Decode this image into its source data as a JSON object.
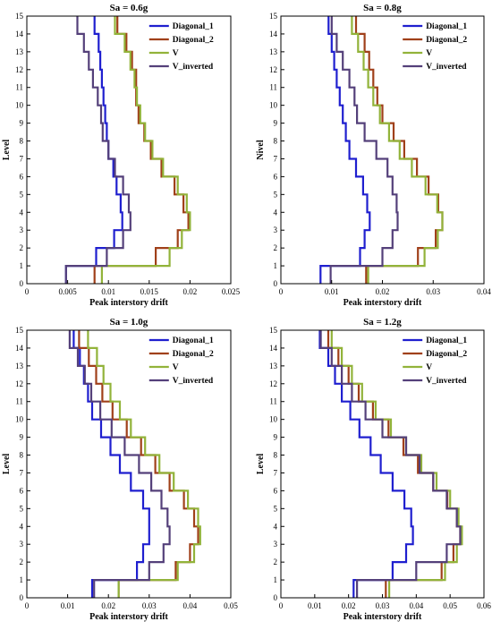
{
  "colors": {
    "Diagonal_1": "#1f1fcf",
    "Diagonal_2": "#a0401a",
    "V": "#92b33a",
    "V_inverted": "#54407a",
    "axis": "#000000"
  },
  "chart_data": [
    {
      "type": "line",
      "title": "Sa = 0.6g",
      "xlabel": "Peak interstory drift",
      "ylabel": "Level",
      "xlim": [
        0,
        0.025
      ],
      "ylim": [
        0,
        15
      ],
      "xticks": [
        0,
        0.005,
        0.01,
        0.015,
        0.02,
        0.025
      ],
      "xtick_labels": [
        "0",
        "0.005",
        "0.01",
        "0.015",
        "0.02",
        "0.025"
      ],
      "yticks": [
        0,
        1,
        2,
        3,
        4,
        5,
        6,
        7,
        8,
        9,
        10,
        11,
        12,
        13,
        14,
        15
      ],
      "legend_position": "top-right",
      "grid": false,
      "series": [
        {
          "name": "Diagonal_1",
          "values": [
            0.0048,
            0.0085,
            0.0107,
            0.0117,
            0.0115,
            0.011,
            0.0106,
            0.01,
            0.0098,
            0.0096,
            0.0094,
            0.0092,
            0.009,
            0.0088,
            0.0083
          ]
        },
        {
          "name": "Diagonal_2",
          "values": [
            0.0083,
            0.0158,
            0.0185,
            0.0198,
            0.0192,
            0.0181,
            0.0165,
            0.0152,
            0.0144,
            0.0137,
            0.0134,
            0.0134,
            0.0129,
            0.0122,
            0.0111
          ]
        },
        {
          "name": "V",
          "values": [
            0.0092,
            0.0175,
            0.019,
            0.02,
            0.0196,
            0.0185,
            0.0167,
            0.0154,
            0.0145,
            0.0139,
            0.0135,
            0.0132,
            0.0127,
            0.012,
            0.0108
          ]
        },
        {
          "name": "V_inverted",
          "values": [
            0.0048,
            0.0098,
            0.0118,
            0.0127,
            0.0125,
            0.0118,
            0.0108,
            0.01,
            0.0093,
            0.0091,
            0.0087,
            0.0081,
            0.0076,
            0.007,
            0.0062
          ]
        }
      ]
    },
    {
      "type": "line",
      "title": "Sa = 0.8g",
      "xlabel": "Peak interstory drift",
      "ylabel": "Nivel",
      "xlim": [
        0,
        0.04
      ],
      "ylim": [
        0,
        15
      ],
      "xticks": [
        0,
        0.01,
        0.02,
        0.03,
        0.04
      ],
      "xtick_labels": [
        "0",
        "0.01",
        "0.02",
        "0.03",
        "0.04"
      ],
      "yticks": [
        0,
        1,
        2,
        3,
        4,
        5,
        6,
        7,
        8,
        9,
        10,
        11,
        12,
        13,
        14,
        15
      ],
      "legend_position": "top-right",
      "grid": false,
      "series": [
        {
          "name": "Diagonal_1",
          "values": [
            0.0078,
            0.0156,
            0.0165,
            0.0175,
            0.017,
            0.0162,
            0.0148,
            0.0135,
            0.0128,
            0.0122,
            0.0116,
            0.011,
            0.0105,
            0.01,
            0.0094
          ]
        },
        {
          "name": "Diagonal_2",
          "values": [
            0.0168,
            0.027,
            0.0305,
            0.0318,
            0.031,
            0.0291,
            0.0268,
            0.0243,
            0.0222,
            0.02,
            0.019,
            0.0182,
            0.0174,
            0.0165,
            0.0148
          ]
        },
        {
          "name": "V",
          "values": [
            0.0172,
            0.0283,
            0.0309,
            0.0318,
            0.0308,
            0.0285,
            0.0258,
            0.0234,
            0.0213,
            0.0195,
            0.0182,
            0.0172,
            0.0163,
            0.0152,
            0.014
          ]
        },
        {
          "name": "V_inverted",
          "values": [
            0.0098,
            0.02,
            0.022,
            0.023,
            0.0228,
            0.022,
            0.021,
            0.0188,
            0.0165,
            0.015,
            0.0145,
            0.0135,
            0.0122,
            0.011,
            0.01
          ]
        }
      ]
    },
    {
      "type": "line",
      "title": "Sa = 1.0g",
      "xlabel": "Peak interstory drift",
      "ylabel": "Level",
      "xlim": [
        0,
        0.05
      ],
      "ylim": [
        0,
        15
      ],
      "xticks": [
        0,
        0.01,
        0.02,
        0.03,
        0.04,
        0.05
      ],
      "xtick_labels": [
        "0",
        "0.01",
        "0.02",
        "0.03",
        "0.04",
        "0.05"
      ],
      "yticks": [
        0,
        1,
        2,
        3,
        4,
        5,
        6,
        7,
        8,
        9,
        10,
        11,
        12,
        13,
        14,
        15
      ],
      "legend_position": "top-right",
      "grid": false,
      "series": [
        {
          "name": "Diagonal_1",
          "values": [
            0.016,
            0.027,
            0.0285,
            0.03,
            0.03,
            0.0285,
            0.0255,
            0.0228,
            0.0205,
            0.0182,
            0.016,
            0.015,
            0.014,
            0.013,
            0.0115
          ]
        },
        {
          "name": "Diagonal_2",
          "values": [
            0.0225,
            0.0365,
            0.04,
            0.042,
            0.041,
            0.0385,
            0.035,
            0.0315,
            0.028,
            0.0245,
            0.021,
            0.0185,
            0.017,
            0.0152,
            0.0128
          ]
        },
        {
          "name": "V",
          "values": [
            0.0225,
            0.037,
            0.041,
            0.0425,
            0.042,
            0.0395,
            0.036,
            0.0325,
            0.029,
            0.0255,
            0.0228,
            0.0205,
            0.0188,
            0.0172,
            0.015
          ]
        },
        {
          "name": "V_inverted",
          "values": [
            0.0165,
            0.03,
            0.0335,
            0.035,
            0.0345,
            0.033,
            0.0305,
            0.0275,
            0.024,
            0.0208,
            0.018,
            0.0158,
            0.0142,
            0.0125,
            0.0105
          ]
        }
      ]
    },
    {
      "type": "line",
      "title": "Sa = 1.2g",
      "xlabel": "Peak interstory drift",
      "ylabel": "Level",
      "xlim": [
        0,
        0.06
      ],
      "ylim": [
        0,
        15
      ],
      "xticks": [
        0,
        0.01,
        0.02,
        0.03,
        0.04,
        0.05,
        0.06
      ],
      "xtick_labels": [
        "0",
        "0.01",
        "0.02",
        "0.03",
        "0.04",
        "0.05",
        "0.06"
      ],
      "yticks": [
        0,
        1,
        2,
        3,
        4,
        5,
        6,
        7,
        8,
        9,
        10,
        11,
        12,
        13,
        14,
        15
      ],
      "legend_position": "top-right",
      "grid": false,
      "series": [
        {
          "name": "Diagonal_1",
          "values": [
            0.0215,
            0.033,
            0.037,
            0.039,
            0.0385,
            0.0365,
            0.033,
            0.0295,
            0.0265,
            0.0232,
            0.0205,
            0.018,
            0.016,
            0.014,
            0.0115
          ]
        },
        {
          "name": "Diagonal_2",
          "values": [
            0.031,
            0.0475,
            0.051,
            0.053,
            0.052,
            0.0492,
            0.045,
            0.0405,
            0.0362,
            0.0318,
            0.0272,
            0.023,
            0.02,
            0.017,
            0.014
          ]
        },
        {
          "name": "V",
          "values": [
            0.032,
            0.0485,
            0.052,
            0.0535,
            0.0525,
            0.05,
            0.046,
            0.0415,
            0.037,
            0.0325,
            0.028,
            0.024,
            0.021,
            0.018,
            0.015
          ]
        },
        {
          "name": "V_inverted",
          "values": [
            0.0225,
            0.04,
            0.049,
            0.053,
            0.052,
            0.049,
            0.045,
            0.041,
            0.037,
            0.03,
            0.025,
            0.021,
            0.018,
            0.015,
            0.0118
          ]
        }
      ]
    }
  ]
}
